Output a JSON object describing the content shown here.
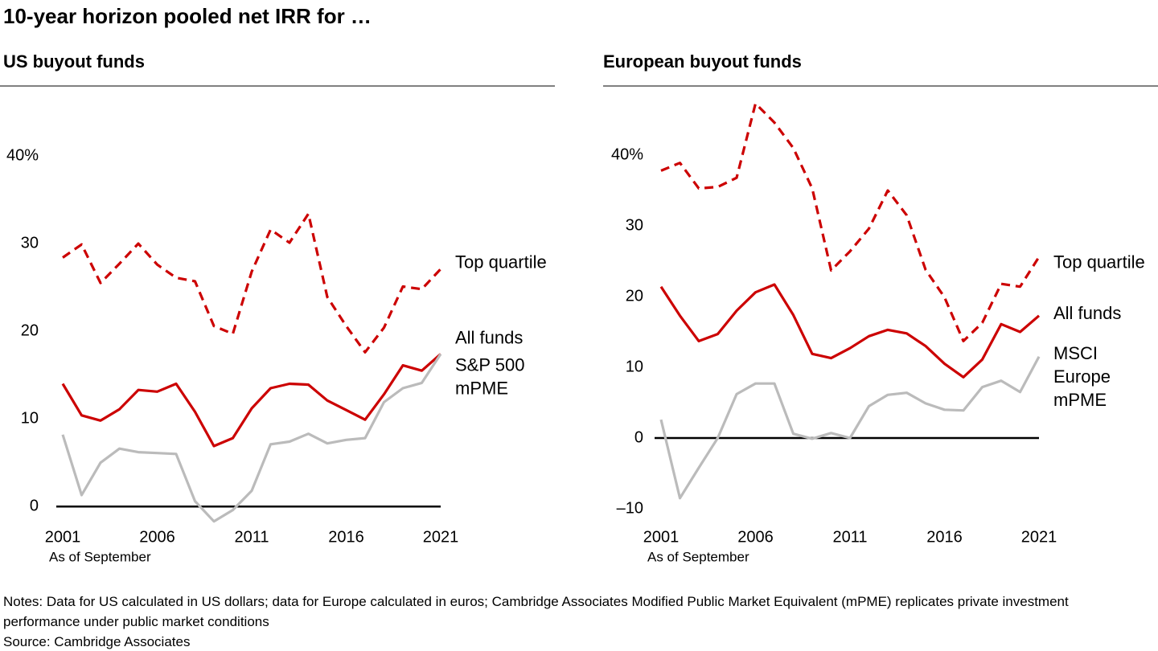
{
  "title": "10-year horizon pooled net IRR for …",
  "chart_data": [
    {
      "type": "line",
      "title": "US buyout funds",
      "xlabel": "As of September",
      "x": [
        2001,
        2002,
        2003,
        2004,
        2005,
        2006,
        2007,
        2008,
        2009,
        2010,
        2011,
        2012,
        2013,
        2014,
        2015,
        2016,
        2017,
        2018,
        2019,
        2020,
        2021
      ],
      "xlim": [
        2001,
        2021
      ],
      "xticks": [
        2001,
        2006,
        2011,
        2016,
        2021
      ],
      "ylim": [
        -2,
        45
      ],
      "yticks": [
        0,
        10,
        20,
        30,
        {
          "value": 40,
          "label": "40%"
        }
      ],
      "series": [
        {
          "name": "Top quartile",
          "color": "#cc0000",
          "dashed": true,
          "values": [
            28.4,
            29.9,
            25.5,
            27.7,
            30.0,
            27.6,
            26.1,
            25.7,
            20.6,
            19.7,
            26.8,
            31.6,
            30.1,
            33.4,
            23.9,
            20.6,
            17.6,
            20.4,
            25.1,
            24.8,
            27.1
          ]
        },
        {
          "name": "All funds",
          "color": "#cc0000",
          "dashed": false,
          "values": [
            14.0,
            10.4,
            9.8,
            11.1,
            13.3,
            13.1,
            14.0,
            10.8,
            6.9,
            7.8,
            11.2,
            13.5,
            14.0,
            13.9,
            12.1,
            11.0,
            9.9,
            12.8,
            16.1,
            15.5,
            17.4
          ]
        },
        {
          "name": "S&P 500\nmPME",
          "color": "#bbbbbb",
          "dashed": false,
          "values": [
            8.2,
            1.3,
            5.0,
            6.6,
            6.2,
            6.1,
            6.0,
            0.6,
            -1.7,
            -0.4,
            1.8,
            7.1,
            7.4,
            8.3,
            7.2,
            7.6,
            7.8,
            11.9,
            13.5,
            14.1,
            17.4
          ]
        }
      ]
    },
    {
      "type": "line",
      "title": "European buyout funds",
      "xlabel": "As of September",
      "x": [
        2001,
        2002,
        2003,
        2004,
        2005,
        2006,
        2007,
        2008,
        2009,
        2010,
        2011,
        2012,
        2013,
        2014,
        2015,
        2016,
        2017,
        2018,
        2019,
        2020,
        2021
      ],
      "xlim": [
        2001,
        2021
      ],
      "xticks": [
        2001,
        2006,
        2011,
        2016,
        2021
      ],
      "ylim": [
        -11,
        48
      ],
      "yticks": [
        {
          "value": -10,
          "label": "–10"
        },
        0,
        10,
        20,
        30,
        {
          "value": 40,
          "label": "40%"
        }
      ],
      "series": [
        {
          "name": "Top quartile",
          "color": "#cc0000",
          "dashed": true,
          "values": [
            37.8,
            38.9,
            35.3,
            35.5,
            36.8,
            47.3,
            44.6,
            41.0,
            35.3,
            23.7,
            26.4,
            29.6,
            35.0,
            31.5,
            23.8,
            19.9,
            13.7,
            16.3,
            21.8,
            21.4,
            25.6
          ]
        },
        {
          "name": "All funds",
          "color": "#cc0000",
          "dashed": false,
          "values": [
            21.4,
            17.3,
            13.7,
            14.7,
            18.0,
            20.6,
            21.7,
            17.4,
            11.9,
            11.3,
            12.7,
            14.4,
            15.3,
            14.8,
            13.0,
            10.5,
            8.6,
            11.1,
            16.1,
            15.0,
            17.3
          ]
        },
        {
          "name": "MSCI\nEurope\nmPME",
          "color": "#bbbbbb",
          "dashed": false,
          "values": [
            2.6,
            -8.5,
            -4.2,
            0.0,
            6.2,
            7.7,
            7.7,
            0.6,
            -0.1,
            0.7,
            0.0,
            4.5,
            6.1,
            6.4,
            4.9,
            4.0,
            3.9,
            7.2,
            8.1,
            6.5,
            11.5
          ]
        }
      ]
    }
  ],
  "notes": "Notes: Data for US calculated in US dollars; data for Europe calculated in euros; Cambridge Associates Modified Public Market Equivalent (mPME) replicates private investment performance under public market conditions",
  "source": "Source: Cambridge Associates"
}
